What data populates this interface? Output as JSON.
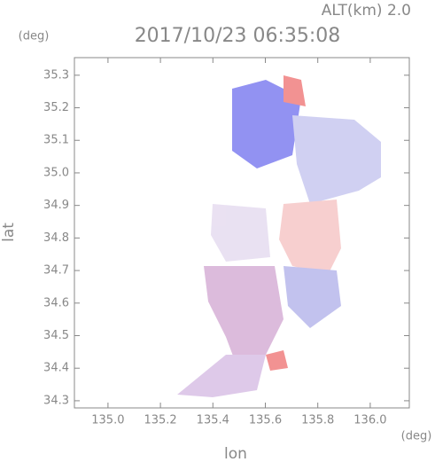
{
  "chart_data": {
    "type": "map",
    "title": "2017/10/23 06:35:08",
    "subtitle": "ALT(km)  2.0",
    "x_label": "lon",
    "y_label": "lat",
    "x_unit": "(deg)",
    "y_unit": "(deg)",
    "xlim": [
      134.872,
      136.149
    ],
    "ylim": [
      34.278,
      35.354
    ],
    "xticks": [
      {
        "value": 135,
        "label": "135.0"
      },
      135.2,
      135.4,
      135.6,
      135.8,
      {
        "value": 136,
        "label": "136.0"
      }
    ],
    "yticks": [
      34.3,
      34.4,
      34.5,
      34.6,
      34.7,
      34.8,
      34.9,
      {
        "value": 35,
        "label": "35.0"
      },
      35.1,
      35.2,
      35.3
    ],
    "axis_color": "#888888"
  }
}
